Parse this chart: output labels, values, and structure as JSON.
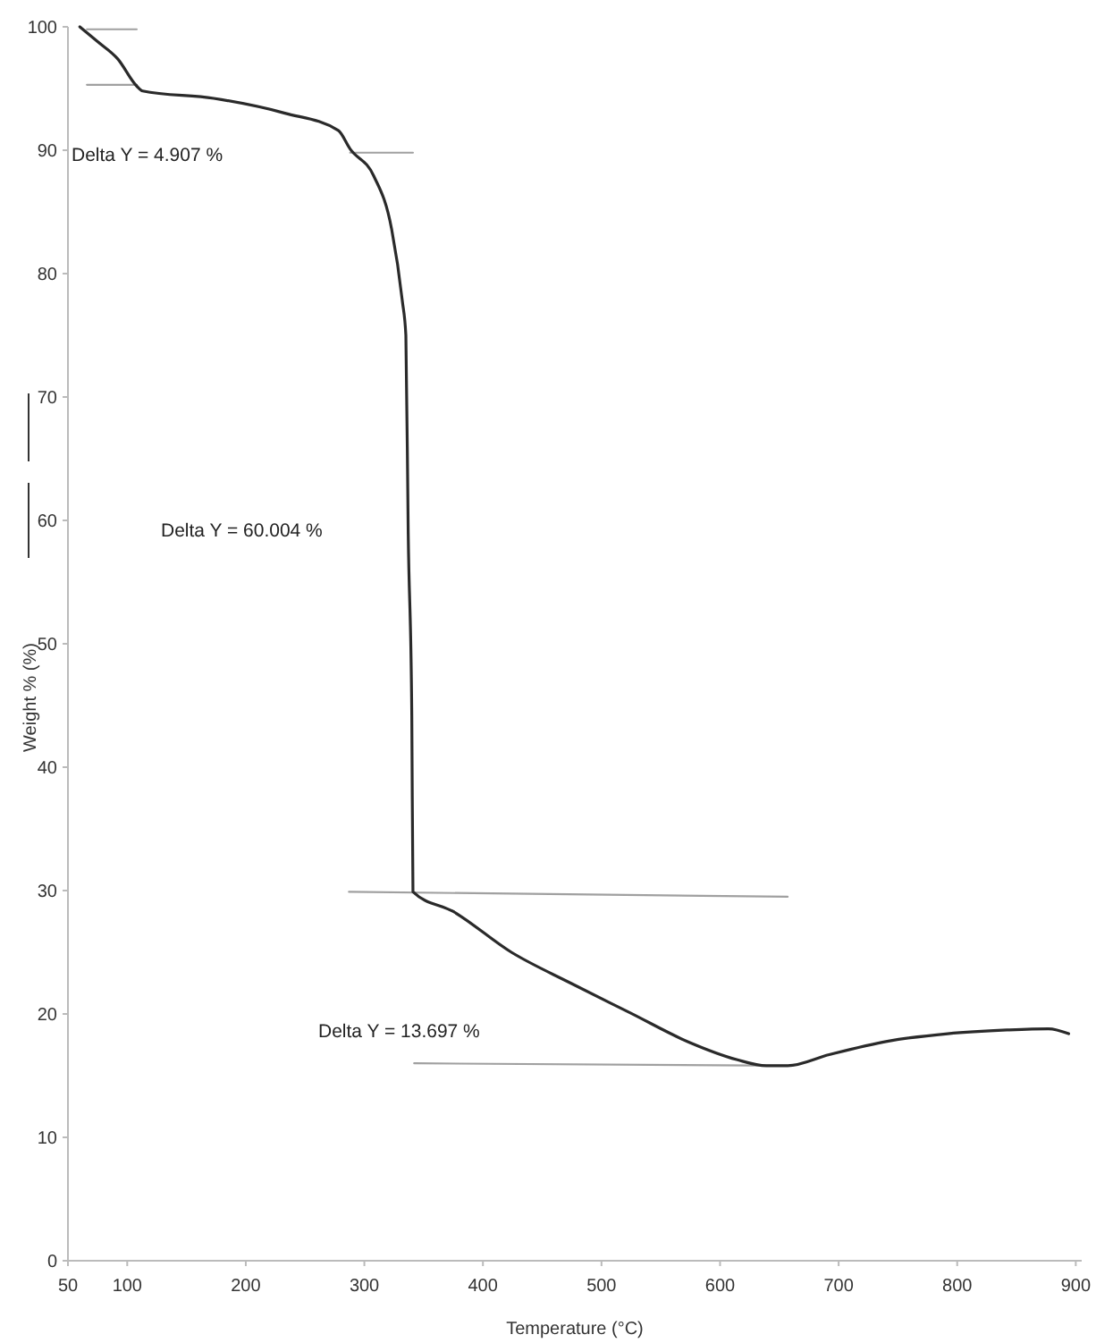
{
  "chart_data": {
    "type": "line",
    "xlabel": "Temperature (°C)",
    "ylabel": "Weight % (%)",
    "xlim": [
      50,
      905
    ],
    "ylim": [
      0,
      100
    ],
    "xticks": [
      50,
      100,
      200,
      300,
      400,
      500,
      600,
      700,
      800,
      900
    ],
    "yticks": [
      0,
      10,
      20,
      30,
      40,
      50,
      60,
      70,
      80,
      90,
      100
    ],
    "grid": false,
    "marker": "none",
    "line_style": "solid",
    "annotations": [
      "Delta Y = 4.907 %",
      "Delta Y = 60.004 %",
      "Delta Y = 13.697 %"
    ],
    "series": [
      {
        "color": "#2a2a2a",
        "x": [
          60,
          75,
          92,
          108,
          113,
          173,
          233,
          278,
          288,
          308,
          323,
          332,
          335,
          337,
          340,
          341,
          375,
          424,
          474,
          524,
          574,
          614,
          639,
          657,
          692,
          742,
          792,
          842,
          877,
          894
        ],
        "values": [
          100,
          98.8,
          97.4,
          95.2,
          94.8,
          94.2,
          93.0,
          91.6,
          90.1,
          87.9,
          83.6,
          77.8,
          75,
          58.9,
          44.3,
          29.9,
          28.3,
          25.0,
          22.5,
          20.1,
          17.7,
          16.3,
          15.8,
          15.8,
          16.7,
          17.8,
          18.4,
          18.7,
          18.8,
          18.4
        ]
      },
      {
        "color": "#a0a0a0",
        "x": [
          66,
          108
        ],
        "values": [
          99.8,
          99.8
        ]
      },
      {
        "color": "#a0a0a0",
        "x": [
          66,
          108
        ],
        "values": [
          95.3,
          95.3
        ]
      },
      {
        "color": "#a0a0a0",
        "x": [
          288,
          341
        ],
        "values": [
          89.8,
          89.8
        ]
      },
      {
        "color": "#a0a0a0",
        "x": [
          287,
          657
        ],
        "values": [
          29.9,
          29.5
        ]
      },
      {
        "color": "#a0a0a0",
        "x": [
          342,
          657
        ],
        "values": [
          16.0,
          15.8
        ]
      }
    ]
  }
}
